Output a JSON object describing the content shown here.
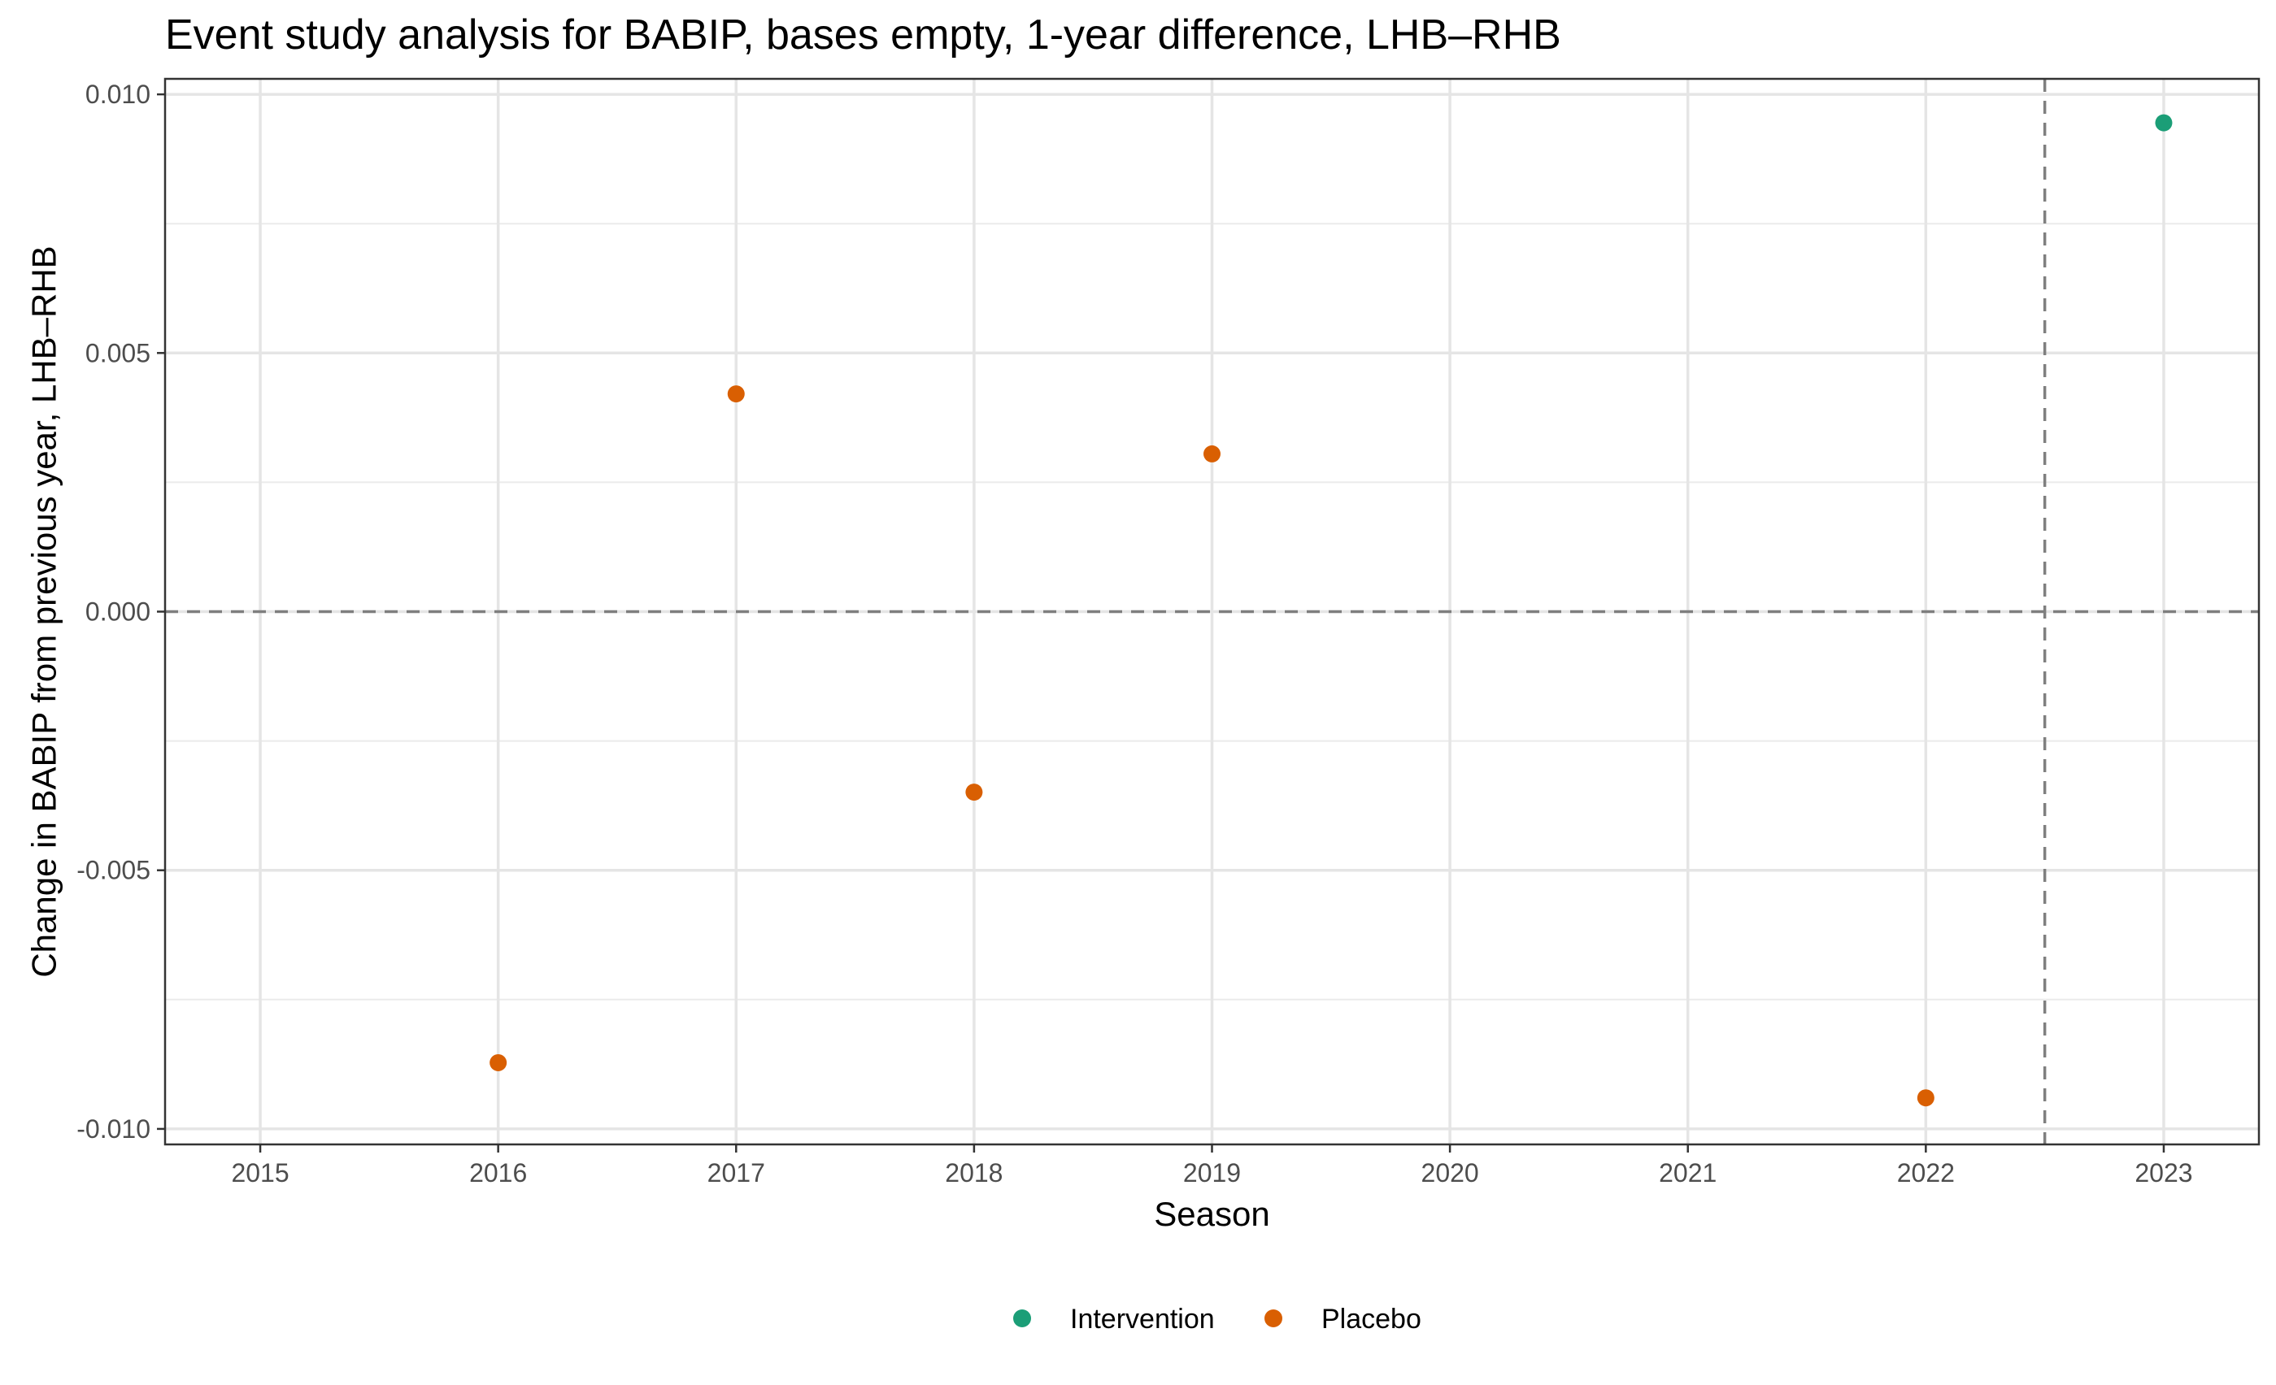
{
  "chart_data": {
    "type": "scatter",
    "title": "Event study analysis for BABIP, bases empty, 1-year difference, LHB–RHB",
    "xlabel": "Season",
    "ylabel": "Change in BABIP from previous year, LHB–RHB",
    "xlim": [
      2014.6,
      2023.4
    ],
    "ylim": [
      -0.0103,
      0.0103
    ],
    "x_ticks": [
      2015,
      2016,
      2017,
      2018,
      2019,
      2020,
      2021,
      2022,
      2023
    ],
    "x_tick_labels": [
      "2015",
      "2016",
      "2017",
      "2018",
      "2019",
      "2020",
      "2021",
      "2022",
      "2023"
    ],
    "y_ticks": [
      -0.01,
      -0.005,
      0,
      0.005,
      0.01
    ],
    "y_tick_labels": [
      "-0.010",
      "-0.005",
      "0.000",
      "0.005",
      "0.010"
    ],
    "grid": true,
    "reference_lines": {
      "h": 0,
      "v": 2022.5
    },
    "legend_position": "bottom",
    "series": [
      {
        "name": "Intervention",
        "color": "#1b9e77",
        "points": [
          {
            "x": 2023,
            "y": 0.00945
          }
        ]
      },
      {
        "name": "Placebo",
        "color": "#d95f02",
        "points": [
          {
            "x": 2016,
            "y": -0.00872
          },
          {
            "x": 2017,
            "y": 0.00421
          },
          {
            "x": 2018,
            "y": -0.00349
          },
          {
            "x": 2019,
            "y": 0.00305
          },
          {
            "x": 2022,
            "y": -0.0094
          }
        ]
      }
    ]
  }
}
